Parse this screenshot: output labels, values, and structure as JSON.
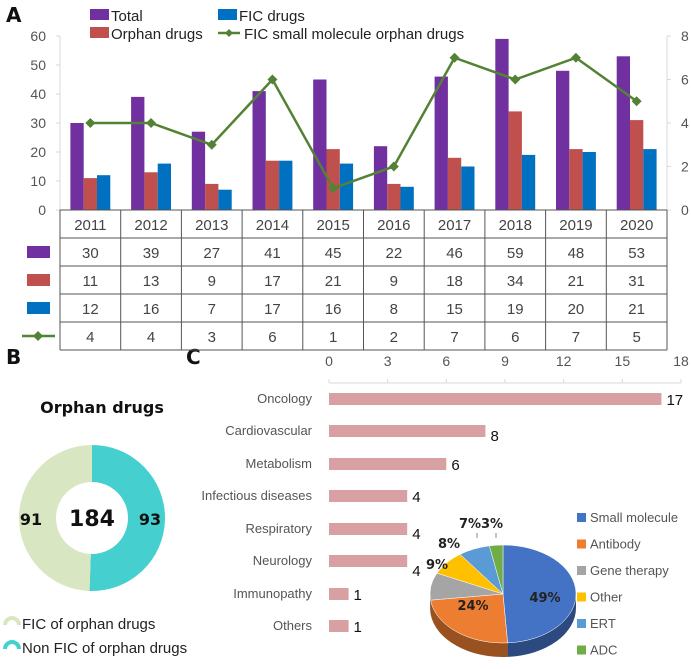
{
  "panels": {
    "a": "A",
    "b": "B",
    "c": "C"
  },
  "chart_data": [
    {
      "type": "bar",
      "panel": "A",
      "title": "",
      "categories": [
        "2011",
        "2012",
        "2013",
        "2014",
        "2015",
        "2016",
        "2017",
        "2018",
        "2019",
        "2020"
      ],
      "series": [
        {
          "name": "Total",
          "type": "bar",
          "axis": "left",
          "color": "#7030A0",
          "values": [
            30,
            39,
            27,
            41,
            45,
            22,
            46,
            59,
            48,
            53
          ]
        },
        {
          "name": "Orphan drugs",
          "type": "bar",
          "axis": "left",
          "color": "#C0504D",
          "values": [
            11,
            13,
            9,
            17,
            21,
            9,
            18,
            34,
            21,
            31
          ]
        },
        {
          "name": "FIC drugs",
          "type": "bar",
          "axis": "left",
          "color": "#0070C0",
          "values": [
            12,
            16,
            7,
            17,
            16,
            8,
            15,
            19,
            20,
            21
          ]
        },
        {
          "name": "FIC small molecule orphan drugs",
          "type": "line",
          "axis": "right",
          "color": "#548235",
          "values": [
            4,
            4,
            3,
            6,
            1,
            2,
            7,
            6,
            7,
            5
          ]
        }
      ],
      "ylim_left": [
        0,
        60
      ],
      "yticks_left": [
        "0",
        "10",
        "20",
        "30",
        "40",
        "50",
        "60"
      ],
      "ylim_right": [
        0,
        8
      ],
      "yticks_right": [
        "0",
        "2",
        "4",
        "6",
        "8"
      ],
      "legend": [
        "Total",
        "FIC drugs",
        "Orphan drugs",
        "FIC small molecule orphan drugs"
      ],
      "legend_position": "top",
      "data_table": true,
      "grid": false
    },
    {
      "type": "pie",
      "panel": "B",
      "title": "Orphan drugs",
      "center_label": "184",
      "labels": [
        "FIC of orphan drugs",
        "Non FIC of orphan drugs"
      ],
      "values": [
        91,
        93
      ],
      "colors": [
        "#D8E6C2",
        "#45CFCF"
      ],
      "legend_position": "bottom-left"
    },
    {
      "type": "bar",
      "panel": "C",
      "orientation": "horizontal",
      "categories": [
        "Oncology",
        "Cardiovascular",
        "Metabolism",
        "Infectious diseases",
        "Respiratory",
        "Neurology",
        "Immunopathy",
        "Others"
      ],
      "values": [
        17,
        8,
        6,
        4,
        4,
        4,
        1,
        1
      ],
      "color": "#D9A0A4",
      "xlim": [
        0,
        18
      ],
      "xticks": [
        "0",
        "3",
        "6",
        "9",
        "12",
        "15",
        "18"
      ],
      "xaxis_position": "top"
    },
    {
      "type": "pie",
      "panel": "C-inset",
      "labels": [
        "Small molecule",
        "Antibody",
        "Gene therapy",
        "Other",
        "ERT",
        "ADC"
      ],
      "values": [
        49,
        24,
        9,
        8,
        7,
        3
      ],
      "value_labels": [
        "49%",
        "24%",
        "9%",
        "8%",
        "7%",
        "3%"
      ],
      "colors": [
        "#4472C4",
        "#ED7D31",
        "#A5A5A5",
        "#FFC000",
        "#5B9BD5",
        "#70AD47"
      ],
      "legend_position": "right"
    }
  ]
}
